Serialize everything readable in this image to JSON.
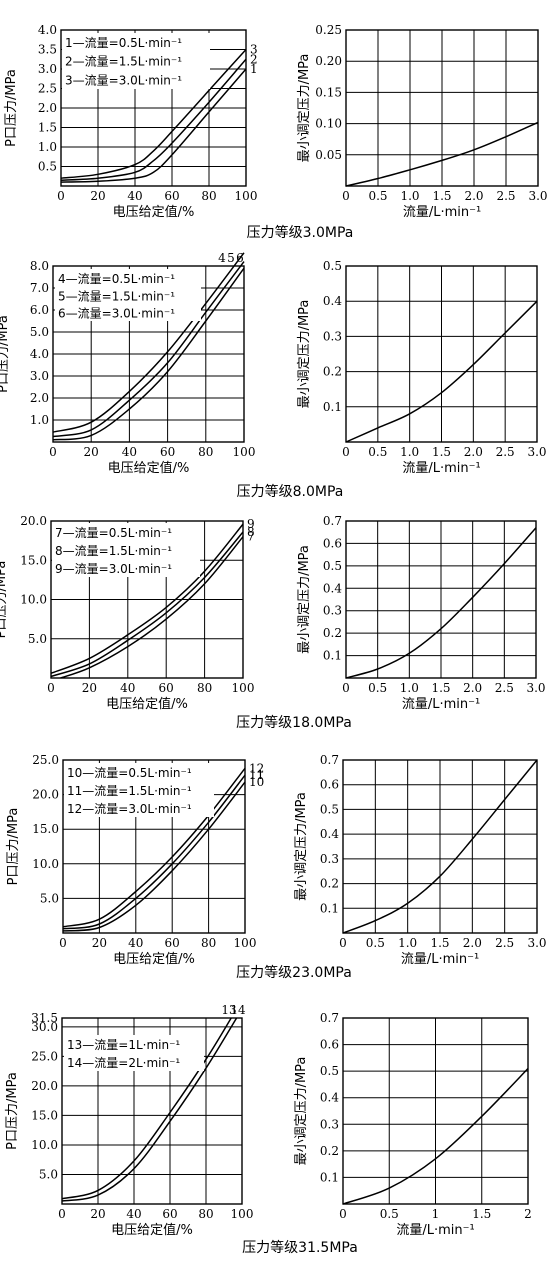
{
  "chart_data": [
    {
      "type": "line",
      "xlabel": "电压给定值/%",
      "ylabel": "P口压力/MPa",
      "x_ticks": [
        "0",
        "20",
        "40",
        "60",
        "80",
        "100"
      ],
      "y_ticks": [
        "0.5",
        "1.0",
        "1.5",
        "2.0",
        "2.5",
        "3.0",
        "3.5",
        "4.0"
      ],
      "xlim": [
        0,
        100
      ],
      "ylim": [
        0,
        4.0
      ],
      "grid": true,
      "legend": [
        "1—流量=0.5L·min⁻¹",
        "2—流量=1.5L·min⁻¹",
        "3—流量=3.0L·min⁻¹"
      ],
      "series": [
        {
          "name": "1",
          "x": [
            0,
            20,
            40,
            50,
            60,
            80,
            100
          ],
          "y": [
            0.1,
            0.12,
            0.2,
            0.35,
            0.8,
            1.9,
            3.0
          ]
        },
        {
          "name": "2",
          "x": [
            0,
            20,
            40,
            50,
            60,
            80,
            100
          ],
          "y": [
            0.15,
            0.2,
            0.35,
            0.65,
            1.1,
            2.15,
            3.25
          ]
        },
        {
          "name": "3",
          "x": [
            0,
            20,
            40,
            50,
            60,
            80,
            100
          ],
          "y": [
            0.2,
            0.3,
            0.55,
            0.9,
            1.4,
            2.45,
            3.5
          ]
        }
      ]
    },
    {
      "type": "line",
      "xlabel": "流量/L·min⁻¹",
      "ylabel": "最小调定压力/MPa",
      "x_ticks": [
        "0",
        "0.5",
        "1.0",
        "1.5",
        "2.0",
        "2.5",
        "3.0"
      ],
      "y_ticks": [
        "0.05",
        "0.10",
        "0.15",
        "0.20",
        "0.25"
      ],
      "xlim": [
        0,
        3.0
      ],
      "ylim": [
        0,
        0.25
      ],
      "grid": true,
      "series": [
        {
          "x": [
            0,
            0.5,
            1.0,
            1.5,
            2.0,
            2.5,
            3.0
          ],
          "y": [
            0,
            0.012,
            0.026,
            0.041,
            0.058,
            0.079,
            0.102
          ]
        }
      ]
    },
    {
      "type": "line",
      "xlabel": "电压给定值/%",
      "ylabel": "P口压力/MPa",
      "x_ticks": [
        "0",
        "20",
        "40",
        "60",
        "80",
        "100"
      ],
      "y_ticks": [
        "1.0",
        "2.0",
        "3.0",
        "4.0",
        "5.0",
        "6.0",
        "7.0",
        "8.0"
      ],
      "xlim": [
        0,
        100
      ],
      "ylim": [
        0,
        8.0
      ],
      "grid": true,
      "legend": [
        "4—流量=0.5L·min⁻¹",
        "5—流量=1.5L·min⁻¹",
        "6—流量=3.0L·min⁻¹"
      ],
      "series": [
        {
          "name": "4",
          "x": [
            0,
            20,
            40,
            60,
            80,
            100
          ],
          "y": [
            0.1,
            0.3,
            1.5,
            3.2,
            5.5,
            7.9
          ]
        },
        {
          "name": "5",
          "x": [
            0,
            20,
            40,
            60,
            80,
            100
          ],
          "y": [
            0.25,
            0.55,
            1.9,
            3.6,
            5.9,
            8.2
          ]
        },
        {
          "name": "6",
          "x": [
            0,
            20,
            40,
            60,
            80,
            100
          ],
          "y": [
            0.45,
            0.9,
            2.3,
            4.1,
            6.3,
            8.6
          ]
        }
      ]
    },
    {
      "type": "line",
      "xlabel": "流量/L·min⁻¹",
      "ylabel": "最小调定压力/MPa",
      "x_ticks": [
        "0",
        "0.5",
        "1.0",
        "1.5",
        "2.0",
        "2.5",
        "3.0"
      ],
      "y_ticks": [
        "0.1",
        "0.2",
        "0.3",
        "0.4",
        "0.5"
      ],
      "xlim": [
        0,
        3.0
      ],
      "ylim": [
        0,
        0.5
      ],
      "grid": true,
      "series": [
        {
          "x": [
            0,
            0.5,
            1.0,
            1.5,
            2.0,
            2.5,
            3.0
          ],
          "y": [
            0,
            0.04,
            0.08,
            0.14,
            0.22,
            0.31,
            0.4
          ]
        }
      ]
    },
    {
      "type": "line",
      "xlabel": "电压给定值/%",
      "ylabel": "P口压力/MPa",
      "x_ticks": [
        "0",
        "20",
        "40",
        "60",
        "80",
        "100"
      ],
      "y_ticks": [
        "5.0",
        "10.0",
        "15.0",
        "20.0"
      ],
      "xlim": [
        0,
        100
      ],
      "ylim": [
        0,
        20.0
      ],
      "grid": true,
      "legend": [
        "7—流量=0.5L·min⁻¹",
        "8—流量=1.5L·min⁻¹",
        "9—流量=3.0L·min⁻¹"
      ],
      "series": [
        {
          "name": "7",
          "x": [
            5,
            20,
            40,
            60,
            80,
            100
          ],
          "y": [
            0,
            1.3,
            4.0,
            7.5,
            12.0,
            18.0
          ]
        },
        {
          "name": "8",
          "x": [
            0,
            20,
            40,
            60,
            80,
            100
          ],
          "y": [
            0.2,
            1.8,
            4.8,
            8.3,
            12.8,
            18.6
          ]
        },
        {
          "name": "9",
          "x": [
            0,
            20,
            40,
            60,
            80,
            100
          ],
          "y": [
            0.6,
            2.5,
            5.5,
            9.0,
            13.6,
            19.6
          ]
        }
      ]
    },
    {
      "type": "line",
      "xlabel": "流量/L·min⁻¹",
      "ylabel": "最小调定压力/MPa",
      "x_ticks": [
        "0",
        "0.5",
        "1.0",
        "1.5",
        "2.0",
        "2.5",
        "3.0"
      ],
      "y_ticks": [
        "0.1",
        "0.2",
        "0.3",
        "0.4",
        "0.5",
        "0.6",
        "0.7"
      ],
      "xlim": [
        0,
        3.0
      ],
      "ylim": [
        0,
        0.7
      ],
      "grid": true,
      "series": [
        {
          "x": [
            0,
            0.5,
            1.0,
            1.5,
            2.0,
            2.5,
            3.0
          ],
          "y": [
            0,
            0.04,
            0.11,
            0.22,
            0.36,
            0.51,
            0.67
          ]
        }
      ]
    },
    {
      "type": "line",
      "xlabel": "电压给定值/%",
      "ylabel": "P口压力/MPa",
      "x_ticks": [
        "0",
        "20",
        "40",
        "60",
        "80",
        "100"
      ],
      "y_ticks": [
        "5.0",
        "10.0",
        "15.0",
        "20.0",
        "25.0"
      ],
      "xlim": [
        0,
        100
      ],
      "ylim": [
        0,
        25.0
      ],
      "grid": true,
      "legend": [
        "10—流量=0.5L·min⁻¹",
        "11—流量=1.5L·min⁻¹",
        "12—流量=3.0L·min⁻¹"
      ],
      "series": [
        {
          "name": "10",
          "x": [
            0,
            20,
            40,
            60,
            80,
            100
          ],
          "y": [
            0.3,
            0.8,
            4.0,
            9.0,
            15.0,
            21.8
          ]
        },
        {
          "name": "11",
          "x": [
            0,
            20,
            40,
            60,
            80,
            100
          ],
          "y": [
            0.6,
            1.3,
            5.0,
            10.0,
            16.0,
            22.8
          ]
        },
        {
          "name": "12",
          "x": [
            0,
            20,
            40,
            60,
            80,
            100
          ],
          "y": [
            0.9,
            2.0,
            6.0,
            11.0,
            17.0,
            23.8
          ]
        }
      ]
    },
    {
      "type": "line",
      "xlabel": "流量/L·min⁻¹",
      "ylabel": "最小调定压力/MPa",
      "x_ticks": [
        "0",
        "0.5",
        "1.0",
        "1.5",
        "2.0",
        "2.5",
        "3.0"
      ],
      "y_ticks": [
        "0.1",
        "0.2",
        "0.3",
        "0.4",
        "0.5",
        "0.6",
        "0.7"
      ],
      "xlim": [
        0,
        3.0
      ],
      "ylim": [
        0,
        0.7
      ],
      "grid": true,
      "series": [
        {
          "x": [
            0,
            0.5,
            1.0,
            1.5,
            2.0,
            2.5,
            3.0
          ],
          "y": [
            0,
            0.05,
            0.12,
            0.23,
            0.38,
            0.54,
            0.7
          ]
        }
      ]
    },
    {
      "type": "line",
      "xlabel": "电压给定值/%",
      "ylabel": "P口压力/MPa",
      "x_ticks": [
        "0",
        "20",
        "40",
        "60",
        "80",
        "100"
      ],
      "y_ticks": [
        "5.0",
        "10.0",
        "15.0",
        "20.0",
        "25.0",
        "30.0",
        "31.5"
      ],
      "xlim": [
        0,
        100
      ],
      "ylim": [
        0,
        31.5
      ],
      "grid": true,
      "legend": [
        "13—流量=1L·min⁻¹",
        "14—流量=2L·min⁻¹"
      ],
      "series": [
        {
          "name": "13",
          "x": [
            0,
            20,
            40,
            60,
            80,
            97
          ],
          "y": [
            0.5,
            1.5,
            6.0,
            14.0,
            23.0,
            31.5
          ]
        },
        {
          "name": "14",
          "x": [
            0,
            20,
            40,
            60,
            80,
            94
          ],
          "y": [
            0.9,
            2.3,
            7.3,
            15.5,
            24.5,
            31.5
          ]
        }
      ]
    },
    {
      "type": "line",
      "xlabel": "流量/L·min⁻¹",
      "ylabel": "最小调定压力/MPa",
      "x_ticks": [
        "0",
        "0.5",
        "1",
        "1.5",
        "2"
      ],
      "y_ticks": [
        "0.1",
        "0.2",
        "0.3",
        "0.4",
        "0.5",
        "0.6",
        "0.7"
      ],
      "xlim": [
        0,
        2.0
      ],
      "ylim": [
        0,
        0.7
      ],
      "grid": true,
      "series": [
        {
          "x": [
            0,
            0.5,
            1.0,
            1.5,
            2.0
          ],
          "y": [
            0,
            0.06,
            0.17,
            0.33,
            0.51
          ]
        }
      ]
    }
  ],
  "captions": [
    "压力等级3.0MPa",
    "压力等级8.0MPa",
    "压力等级18.0MPa",
    "压力等级23.0MPa",
    "压力等级31.5MPa"
  ]
}
